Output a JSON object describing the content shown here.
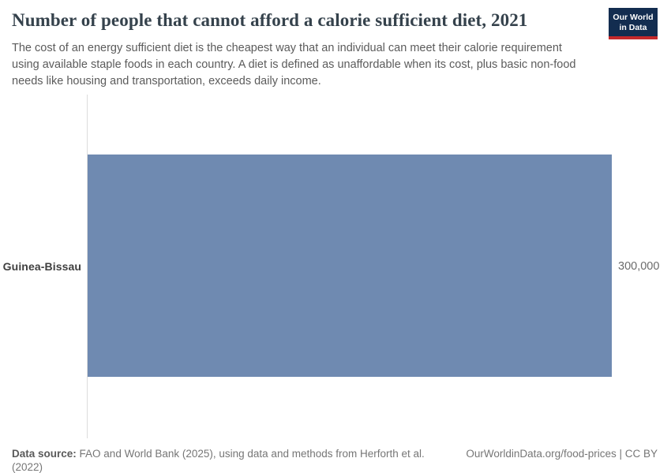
{
  "header": {
    "title": "Number of people that cannot afford a calorie sufficient diet, 2021",
    "subtitle": "The cost of an energy sufficient diet is the cheapest way that an individual can meet their calorie requirement using available staple foods in each country. A diet is defined as unaffordable when its cost, plus basic non-food needs like housing and transportation, exceeds daily income.",
    "logo": {
      "line1": "Our World",
      "line2": "in Data"
    }
  },
  "chart_data": {
    "type": "bar",
    "orientation": "horizontal",
    "title": "Number of people that cannot afford a calorie sufficient diet, 2021",
    "categories": [
      "Guinea-Bissau"
    ],
    "values": [
      300000
    ],
    "value_labels": [
      "300,000"
    ],
    "xlabel": "",
    "ylabel": "",
    "xlim": [
      0,
      300000
    ],
    "grid": false,
    "legend": false,
    "bar_color": "#6f8ab1"
  },
  "footer": {
    "datasource_label": "Data source:",
    "datasource_text": "FAO and World Bank (2025), using data and methods from Herforth et al. (2022)",
    "attribution": "OurWorldinData.org/food-prices | CC BY"
  },
  "colors": {
    "bar": "#6f8ab1",
    "axis_line": "#dcdcdc",
    "title_text": "#35424c",
    "subtitle_text": "#5b5b5b",
    "logo_bg": "#132d50",
    "logo_accent": "#c5292b"
  }
}
